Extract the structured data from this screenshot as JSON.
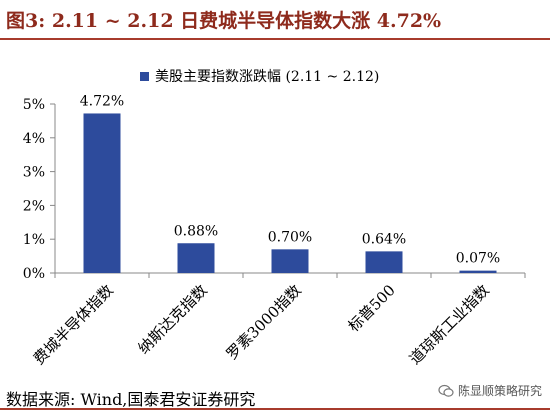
{
  "figure": {
    "title": "图3:  2.11 ~ 2.12 日费城半导体指数大涨 4.72%",
    "source": "数据来源:  Wind,国泰君安证券研究",
    "watermark": "陈显顺策略研究"
  },
  "colors": {
    "bar": "#2d4b9c",
    "title": "#8e2a1c",
    "rule": "#a73b2c",
    "axis": "#888888"
  },
  "chart_data": {
    "type": "bar",
    "legend": "美股主要指数涨跌幅 (2.11 ~ 2.12)",
    "legend_position": "top-center",
    "categories": [
      "费城半导体指数",
      "纳斯达克指数",
      "罗素3000指数",
      "标普500",
      "道琼斯工业指数"
    ],
    "series": [
      {
        "name": "美股主要指数涨跌幅 (2.11 ~ 2.12)",
        "values": [
          4.72,
          0.88,
          0.7,
          0.64,
          0.07
        ]
      }
    ],
    "data_labels": [
      "4.72%",
      "0.88%",
      "0.70%",
      "0.64%",
      "0.07%"
    ],
    "y_ticks": [
      0,
      1,
      2,
      3,
      4,
      5
    ],
    "y_tick_labels": [
      "0%",
      "1%",
      "2%",
      "3%",
      "4%",
      "5%"
    ],
    "ylim": [
      0,
      5
    ],
    "grid": false
  }
}
